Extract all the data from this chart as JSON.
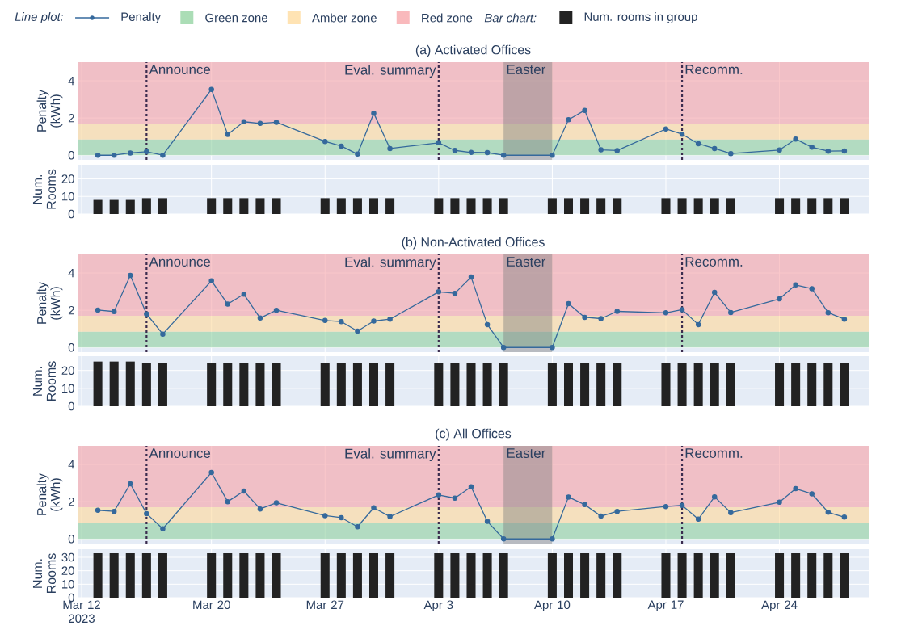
{
  "chart_data": [
    {
      "type": "line",
      "title": "(a) Activated Offices",
      "ylabel": "Penalty (kWh)",
      "legend": "top",
      "legend_title": "Line plot:",
      "marker": "circle",
      "grid": true,
      "tick_labels": "y",
      "x": [
        "2023-03-13",
        "2023-03-14",
        "2023-03-15",
        "2023-03-16",
        "2023-03-17",
        "2023-03-20",
        "2023-03-21",
        "2023-03-22",
        "2023-03-23",
        "2023-03-24",
        "2023-03-27",
        "2023-03-28",
        "2023-03-29",
        "2023-03-30",
        "2023-03-31",
        "2023-04-03",
        "2023-04-04",
        "2023-04-05",
        "2023-04-06",
        "2023-04-07",
        "2023-04-10",
        "2023-04-11",
        "2023-04-12",
        "2023-04-13",
        "2023-04-14",
        "2023-04-17",
        "2023-04-18",
        "2023-04-19",
        "2023-04-20",
        "2023-04-21",
        "2023-04-24",
        "2023-04-25",
        "2023-04-26",
        "2023-04-27",
        "2023-04-28"
      ],
      "xlim": [
        "2023-03-11T18:00",
        "2023-04-29T12:00"
      ],
      "ylim": [
        -0.25,
        5
      ],
      "yticks": [
        0,
        2,
        4
      ],
      "xticks": [
        {
          "value": "2023-03-12",
          "label": null
        },
        {
          "value": "2023-03-20",
          "label": null
        },
        {
          "value": "2023-03-27",
          "label": null
        },
        {
          "value": "2023-04-03",
          "label": null
        },
        {
          "value": "2023-04-10",
          "label": null
        },
        {
          "value": "2023-04-17",
          "label": null
        },
        {
          "value": "2023-04-24",
          "label": null
        }
      ],
      "series": [
        {
          "name": "Penalty",
          "color": "#35699c",
          "values": [
            0,
            0,
            0.12,
            0.19,
            0,
            3.54,
            1.12,
            1.8,
            1.71,
            1.77,
            0.74,
            0.49,
            0.06,
            2.26,
            0.36,
            0.67,
            0.26,
            0.15,
            0.14,
            0,
            0,
            1.91,
            2.41,
            0.29,
            0.25,
            1.41,
            1.13,
            0.62,
            0.36,
            0.09,
            0.28,
            0.87,
            0.43,
            0.22,
            0.23
          ]
        }
      ],
      "bands": [
        {
          "axis": "y",
          "from": 0,
          "to": 0.85,
          "label": "Green zone",
          "color": "#8fd19e"
        },
        {
          "axis": "y",
          "from": 0.85,
          "to": 1.7,
          "label": "Amber zone",
          "color": "#ffd99a"
        },
        {
          "axis": "y",
          "from": 1.7,
          "to": 5,
          "label": "Red zone",
          "color": "#f7a1a6"
        },
        {
          "axis": "x",
          "from": "2023-04-07",
          "to": "2023-04-10",
          "label": "Easter",
          "color": "#808080"
        }
      ],
      "ref_lines": [
        {
          "axis": "x",
          "value": "2023-03-16",
          "label": "Announce",
          "color": "#3b2c4f",
          "line_style": "dotted"
        },
        {
          "axis": "x",
          "value": "2023-04-03",
          "label": "Eval. summary",
          "color": "#3b2c4f",
          "line_style": "dotted"
        },
        {
          "axis": "x",
          "value": "2023-04-18",
          "label": "Recomm.",
          "color": "#3b2c4f",
          "line_style": "dotted"
        }
      ]
    },
    {
      "type": "bar",
      "ylabel": "Num. Rooms",
      "legend": "top",
      "legend_title": "Bar chart:",
      "grid": true,
      "tick_labels": "y",
      "x": [
        "2023-03-13",
        "2023-03-14",
        "2023-03-15",
        "2023-03-16",
        "2023-03-17",
        "2023-03-20",
        "2023-03-21",
        "2023-03-22",
        "2023-03-23",
        "2023-03-24",
        "2023-03-27",
        "2023-03-28",
        "2023-03-29",
        "2023-03-30",
        "2023-03-31",
        "2023-04-03",
        "2023-04-04",
        "2023-04-05",
        "2023-04-06",
        "2023-04-07",
        "2023-04-10",
        "2023-04-11",
        "2023-04-12",
        "2023-04-13",
        "2023-04-14",
        "2023-04-17",
        "2023-04-18",
        "2023-04-19",
        "2023-04-20",
        "2023-04-21",
        "2023-04-24",
        "2023-04-25",
        "2023-04-26",
        "2023-04-27",
        "2023-04-28"
      ],
      "xlim": [
        "2023-03-11T18:00",
        "2023-04-29T12:00"
      ],
      "ylim": [
        0,
        28
      ],
      "yticks": [
        0,
        10,
        20
      ],
      "xticks": [
        {
          "value": "2023-03-12",
          "label": null
        },
        {
          "value": "2023-03-20",
          "label": null
        },
        {
          "value": "2023-03-27",
          "label": null
        },
        {
          "value": "2023-04-03",
          "label": null
        },
        {
          "value": "2023-04-10",
          "label": null
        },
        {
          "value": "2023-04-17",
          "label": null
        },
        {
          "value": "2023-04-24",
          "label": null
        }
      ],
      "series": [
        {
          "name": "Num. rooms in group",
          "color": "#222222",
          "values": [
            8,
            8,
            8,
            9,
            9,
            9,
            9,
            9,
            9,
            9,
            9,
            9,
            9,
            9,
            9,
            9,
            9,
            9,
            9,
            9,
            9,
            9,
            9,
            9,
            9,
            9,
            9,
            9,
            9,
            9,
            9,
            9,
            9,
            9,
            9
          ]
        }
      ]
    },
    {
      "type": "line",
      "title": "(b) Non-Activated Offices",
      "ylabel": "Penalty (kWh)",
      "marker": "circle",
      "grid": true,
      "tick_labels": "y",
      "x": [
        "2023-03-13",
        "2023-03-14",
        "2023-03-15",
        "2023-03-16",
        "2023-03-17",
        "2023-03-20",
        "2023-03-21",
        "2023-03-22",
        "2023-03-23",
        "2023-03-24",
        "2023-03-27",
        "2023-03-28",
        "2023-03-29",
        "2023-03-30",
        "2023-03-31",
        "2023-04-03",
        "2023-04-04",
        "2023-04-05",
        "2023-04-06",
        "2023-04-07",
        "2023-04-10",
        "2023-04-11",
        "2023-04-12",
        "2023-04-13",
        "2023-04-14",
        "2023-04-17",
        "2023-04-18",
        "2023-04-19",
        "2023-04-20",
        "2023-04-21",
        "2023-04-24",
        "2023-04-25",
        "2023-04-26",
        "2023-04-27",
        "2023-04-28"
      ],
      "xlim": [
        "2023-03-11T18:00",
        "2023-04-29T12:00"
      ],
      "ylim": [
        -0.25,
        5
      ],
      "yticks": [
        0,
        2,
        4
      ],
      "xticks": [
        {
          "value": "2023-03-12",
          "label": null
        },
        {
          "value": "2023-03-20",
          "label": null
        },
        {
          "value": "2023-03-27",
          "label": null
        },
        {
          "value": "2023-04-03",
          "label": null
        },
        {
          "value": "2023-04-10",
          "label": null
        },
        {
          "value": "2023-04-17",
          "label": null
        },
        {
          "value": "2023-04-24",
          "label": null
        }
      ],
      "series": [
        {
          "color": "#35699c",
          "values": [
            2.01,
            1.93,
            3.87,
            1.8,
            0.72,
            3.58,
            2.33,
            2.86,
            1.58,
            2.0,
            1.45,
            1.39,
            0.88,
            1.42,
            1.52,
            2.99,
            2.91,
            3.78,
            1.23,
            0,
            0,
            2.35,
            1.62,
            1.55,
            1.94,
            1.86,
            2.03,
            1.23,
            2.96,
            1.88,
            2.61,
            3.36,
            3.16,
            1.87,
            1.52
          ]
        }
      ],
      "bands": [
        {
          "axis": "y",
          "from": 0,
          "to": 0.85,
          "color": "#8fd19e"
        },
        {
          "axis": "y",
          "from": 0.85,
          "to": 1.7,
          "color": "#ffd99a"
        },
        {
          "axis": "y",
          "from": 1.7,
          "to": 5,
          "color": "#f7a1a6"
        },
        {
          "axis": "x",
          "from": "2023-04-07",
          "to": "2023-04-10",
          "label": "Easter",
          "color": "#808080"
        }
      ],
      "ref_lines": [
        {
          "axis": "x",
          "value": "2023-03-16",
          "label": "Announce",
          "color": "#3b2c4f",
          "line_style": "dotted"
        },
        {
          "axis": "x",
          "value": "2023-04-03",
          "label": "Eval. summary",
          "color": "#3b2c4f",
          "line_style": "dotted"
        },
        {
          "axis": "x",
          "value": "2023-04-18",
          "label": "Recomm.",
          "color": "#3b2c4f",
          "line_style": "dotted"
        }
      ]
    },
    {
      "type": "bar",
      "ylabel": "Num. Rooms",
      "grid": true,
      "tick_labels": "y",
      "x": [
        "2023-03-13",
        "2023-03-14",
        "2023-03-15",
        "2023-03-16",
        "2023-03-17",
        "2023-03-20",
        "2023-03-21",
        "2023-03-22",
        "2023-03-23",
        "2023-03-24",
        "2023-03-27",
        "2023-03-28",
        "2023-03-29",
        "2023-03-30",
        "2023-03-31",
        "2023-04-03",
        "2023-04-04",
        "2023-04-05",
        "2023-04-06",
        "2023-04-07",
        "2023-04-10",
        "2023-04-11",
        "2023-04-12",
        "2023-04-13",
        "2023-04-14",
        "2023-04-17",
        "2023-04-18",
        "2023-04-19",
        "2023-04-20",
        "2023-04-21",
        "2023-04-24",
        "2023-04-25",
        "2023-04-26",
        "2023-04-27",
        "2023-04-28"
      ],
      "xlim": [
        "2023-03-11T18:00",
        "2023-04-29T12:00"
      ],
      "ylim": [
        0,
        28
      ],
      "yticks": [
        0,
        10,
        20
      ],
      "xticks": [
        {
          "value": "2023-03-12",
          "label": null
        },
        {
          "value": "2023-03-20",
          "label": null
        },
        {
          "value": "2023-03-27",
          "label": null
        },
        {
          "value": "2023-04-03",
          "label": null
        },
        {
          "value": "2023-04-10",
          "label": null
        },
        {
          "value": "2023-04-17",
          "label": null
        },
        {
          "value": "2023-04-24",
          "label": null
        }
      ],
      "series": [
        {
          "color": "#222222",
          "values": [
            25,
            25,
            25,
            24,
            24,
            24,
            24,
            24,
            24,
            24,
            24,
            24,
            24,
            24,
            24,
            24,
            24,
            24,
            24,
            24,
            24,
            24,
            24,
            24,
            24,
            24,
            24,
            24,
            24,
            24,
            24,
            24,
            24,
            24,
            24
          ]
        }
      ]
    },
    {
      "type": "line",
      "title": "(c) All Offices",
      "ylabel": "Penalty (kWh)",
      "marker": "circle",
      "grid": true,
      "tick_labels": "y",
      "x": [
        "2023-03-13",
        "2023-03-14",
        "2023-03-15",
        "2023-03-16",
        "2023-03-17",
        "2023-03-20",
        "2023-03-21",
        "2023-03-22",
        "2023-03-23",
        "2023-03-24",
        "2023-03-27",
        "2023-03-28",
        "2023-03-29",
        "2023-03-30",
        "2023-03-31",
        "2023-04-03",
        "2023-04-04",
        "2023-04-05",
        "2023-04-06",
        "2023-04-07",
        "2023-04-10",
        "2023-04-11",
        "2023-04-12",
        "2023-04-13",
        "2023-04-14",
        "2023-04-17",
        "2023-04-18",
        "2023-04-19",
        "2023-04-20",
        "2023-04-21",
        "2023-04-24",
        "2023-04-25",
        "2023-04-26",
        "2023-04-27",
        "2023-04-28"
      ],
      "xlim": [
        "2023-03-11T18:00",
        "2023-04-29T12:00"
      ],
      "ylim": [
        -0.25,
        5
      ],
      "yticks": [
        0,
        2,
        4
      ],
      "xticks": [
        {
          "value": "2023-03-12",
          "label": null
        },
        {
          "value": "2023-03-20",
          "label": null
        },
        {
          "value": "2023-03-27",
          "label": null
        },
        {
          "value": "2023-04-03",
          "label": null
        },
        {
          "value": "2023-04-10",
          "label": null
        },
        {
          "value": "2023-04-17",
          "label": null
        },
        {
          "value": "2023-04-24",
          "label": null
        }
      ],
      "series": [
        {
          "color": "#35699c",
          "values": [
            1.54,
            1.48,
            2.96,
            1.36,
            0.54,
            3.57,
            2.0,
            2.57,
            1.61,
            1.94,
            1.25,
            1.14,
            0.65,
            1.67,
            1.2,
            2.36,
            2.19,
            2.8,
            0.94,
            0,
            0,
            2.25,
            1.84,
            1.22,
            1.48,
            1.74,
            1.8,
            1.06,
            2.26,
            1.41,
            1.97,
            2.7,
            2.42,
            1.43,
            1.17
          ]
        }
      ],
      "bands": [
        {
          "axis": "y",
          "from": 0,
          "to": 0.85,
          "color": "#8fd19e"
        },
        {
          "axis": "y",
          "from": 0.85,
          "to": 1.7,
          "color": "#ffd99a"
        },
        {
          "axis": "y",
          "from": 1.7,
          "to": 5,
          "color": "#f7a1a6"
        },
        {
          "axis": "x",
          "from": "2023-04-07",
          "to": "2023-04-10",
          "label": "Easter",
          "color": "#808080"
        }
      ],
      "ref_lines": [
        {
          "axis": "x",
          "value": "2023-03-16",
          "label": "Announce",
          "color": "#3b2c4f",
          "line_style": "dotted"
        },
        {
          "axis": "x",
          "value": "2023-04-03",
          "label": "Eval. summary",
          "color": "#3b2c4f",
          "line_style": "dotted"
        },
        {
          "axis": "x",
          "value": "2023-04-18",
          "label": "Recomm.",
          "color": "#3b2c4f",
          "line_style": "dotted"
        }
      ]
    },
    {
      "type": "bar",
      "ylabel": "Num. Rooms",
      "grid": true,
      "x": [
        "2023-03-13",
        "2023-03-14",
        "2023-03-15",
        "2023-03-16",
        "2023-03-17",
        "2023-03-20",
        "2023-03-21",
        "2023-03-22",
        "2023-03-23",
        "2023-03-24",
        "2023-03-27",
        "2023-03-28",
        "2023-03-29",
        "2023-03-30",
        "2023-03-31",
        "2023-04-03",
        "2023-04-04",
        "2023-04-05",
        "2023-04-06",
        "2023-04-07",
        "2023-04-10",
        "2023-04-11",
        "2023-04-12",
        "2023-04-13",
        "2023-04-14",
        "2023-04-17",
        "2023-04-18",
        "2023-04-19",
        "2023-04-20",
        "2023-04-21",
        "2023-04-24",
        "2023-04-25",
        "2023-04-26",
        "2023-04-27",
        "2023-04-28"
      ],
      "xlim": [
        "2023-03-11T18:00",
        "2023-04-29T12:00"
      ],
      "ylim": [
        0,
        36
      ],
      "yticks": [
        0,
        10,
        20,
        30
      ],
      "xticks": [
        {
          "value": "2023-03-12",
          "label": "Mar 12 2023"
        },
        {
          "value": "2023-03-20",
          "label": "Mar 20"
        },
        {
          "value": "2023-03-27",
          "label": "Mar 27"
        },
        {
          "value": "2023-04-03",
          "label": "Apr 3"
        },
        {
          "value": "2023-04-10",
          "label": "Apr 10"
        },
        {
          "value": "2023-04-17",
          "label": "Apr 17"
        },
        {
          "value": "2023-04-24",
          "label": "Apr 24"
        }
      ],
      "series": [
        {
          "color": "#222222",
          "values": [
            33,
            33,
            33,
            33,
            33,
            33,
            33,
            33,
            33,
            33,
            33,
            33,
            33,
            33,
            33,
            33,
            33,
            33,
            33,
            33,
            33,
            33,
            33,
            33,
            33,
            33,
            33,
            33,
            33,
            33,
            33,
            33,
            33,
            33,
            33
          ]
        }
      ]
    }
  ]
}
